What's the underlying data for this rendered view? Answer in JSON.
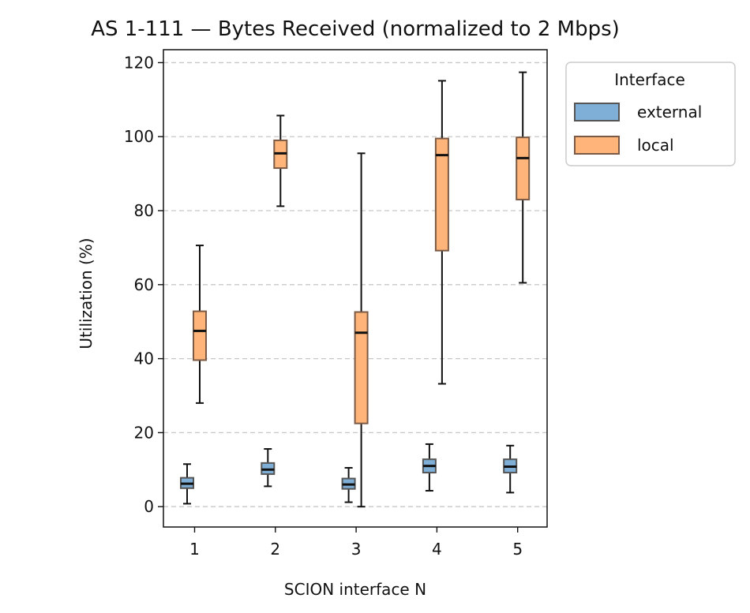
{
  "chart_data": {
    "type": "box",
    "title": "AS 1-111 — Bytes Received (normalized to 2 Mbps)",
    "xlabel": "SCION interface N",
    "ylabel": "Utilization (%)",
    "categories": [
      "1",
      "2",
      "3",
      "4",
      "5"
    ],
    "ylim": [
      -5.5,
      123.5
    ],
    "yticks": [
      0,
      20,
      40,
      60,
      80,
      100,
      120
    ],
    "grid": "y",
    "legend": {
      "title": "Interface",
      "placement": "outside-top-right"
    },
    "series": [
      {
        "name": "external",
        "color": "#7fafd6",
        "edge": "#555555",
        "boxes": [
          {
            "min": 0.8,
            "q1": 5.0,
            "median": 6.2,
            "q3": 7.8,
            "max": 11.5
          },
          {
            "min": 5.5,
            "q1": 8.8,
            "median": 10.0,
            "q3": 11.8,
            "max": 15.6
          },
          {
            "min": 1.2,
            "q1": 4.8,
            "median": 6.0,
            "q3": 7.6,
            "max": 10.5
          },
          {
            "min": 4.3,
            "q1": 9.2,
            "median": 11.0,
            "q3": 12.8,
            "max": 16.9
          },
          {
            "min": 3.8,
            "q1": 9.2,
            "median": 10.8,
            "q3": 12.8,
            "max": 16.5
          }
        ]
      },
      {
        "name": "local",
        "color": "#ffb57a",
        "edge": "#7a5a44",
        "boxes": [
          {
            "min": 28.0,
            "q1": 39.6,
            "median": 47.5,
            "q3": 52.8,
            "max": 70.6
          },
          {
            "min": 81.2,
            "q1": 91.5,
            "median": 95.5,
            "q3": 99.0,
            "max": 105.7
          },
          {
            "min": 0.0,
            "q1": 22.5,
            "median": 47.0,
            "q3": 52.6,
            "max": 95.5
          },
          {
            "min": 33.2,
            "q1": 69.2,
            "median": 95.0,
            "q3": 99.5,
            "max": 115.1
          },
          {
            "min": 60.5,
            "q1": 83.0,
            "median": 94.2,
            "q3": 99.8,
            "max": 117.4
          }
        ]
      }
    ]
  }
}
